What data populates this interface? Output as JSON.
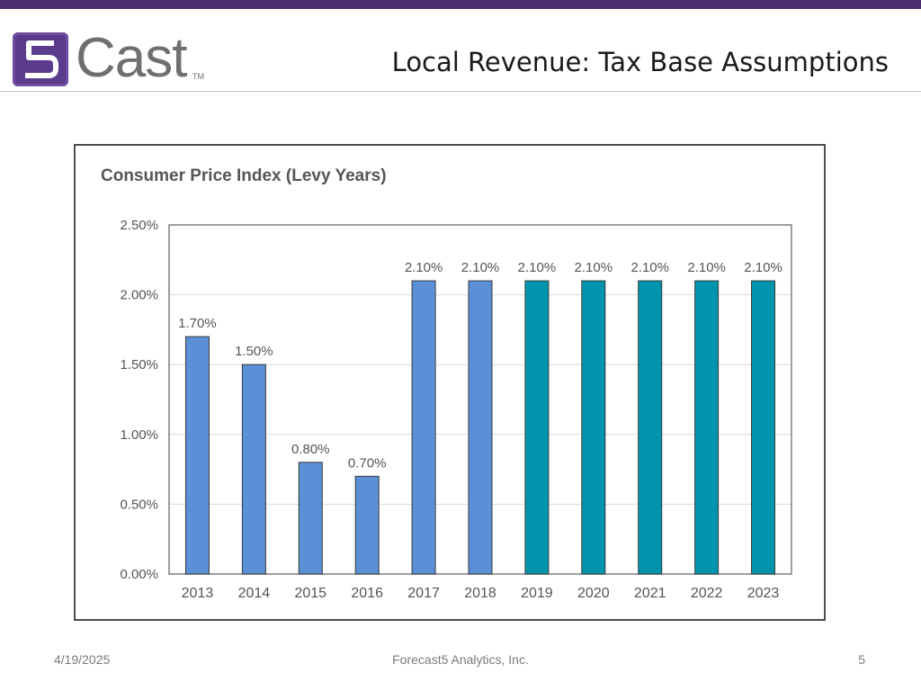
{
  "header": {
    "logo_text": "Cast",
    "logo_mark": "5",
    "logo_tm": "TM",
    "title": "Local Revenue: Tax Base Assumptions"
  },
  "footer": {
    "date": "4/19/2025",
    "company": "Forecast5 Analytics, Inc.",
    "page": "5"
  },
  "colors": {
    "bar_historical": "#5b8fd6",
    "bar_projected": "#0095ad",
    "brand": "#4a2c6f"
  },
  "chart_data": {
    "type": "bar",
    "title": "Consumer Price Index (Levy Years)",
    "xlabel": "",
    "ylabel": "",
    "ylim": [
      0,
      2.5
    ],
    "yticks": [
      "0.00%",
      "0.50%",
      "1.00%",
      "1.50%",
      "2.00%",
      "2.50%"
    ],
    "ytick_values": [
      0,
      0.5,
      1.0,
      1.5,
      2.0,
      2.5
    ],
    "grid": true,
    "categories": [
      "2013",
      "2014",
      "2015",
      "2016",
      "2017",
      "2018",
      "2019",
      "2020",
      "2021",
      "2022",
      "2023"
    ],
    "values": [
      1.7,
      1.5,
      0.8,
      0.7,
      2.1,
      2.1,
      2.1,
      2.1,
      2.1,
      2.1,
      2.1
    ],
    "labels": [
      "1.70%",
      "1.50%",
      "0.80%",
      "0.70%",
      "2.10%",
      "2.10%",
      "2.10%",
      "2.10%",
      "2.10%",
      "2.10%",
      "2.10%"
    ],
    "projected": [
      false,
      false,
      false,
      false,
      false,
      false,
      true,
      true,
      true,
      true,
      true
    ]
  }
}
